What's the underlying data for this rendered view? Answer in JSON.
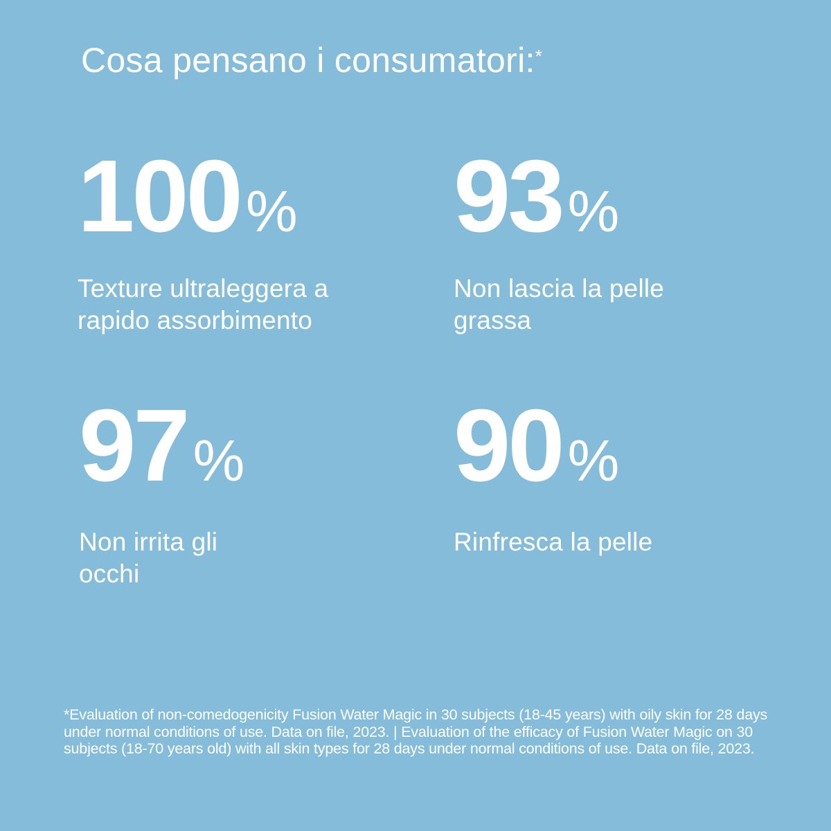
{
  "title": "Cosa pensano i consumatori:",
  "title_marker": "*",
  "background_color": "#85bcd9",
  "text_color": "#ffffff",
  "stats": [
    {
      "value": "100",
      "unit": "%",
      "label": "Texture ultraleggera a rapido assorbimento"
    },
    {
      "value": "93",
      "unit": "%",
      "label": "Non lascia la pelle grassa"
    },
    {
      "value": "97",
      "unit": "%",
      "label": "Non irrita gli occhi"
    },
    {
      "value": "90",
      "unit": "%",
      "label": "Rinfresca la pelle"
    }
  ],
  "footnote": "*Evaluation of non-comedogenicity Fusion Water Magic in 30 subjects (18-45 years) with oily skin for 28 days under normal conditions of use. Data on file, 2023. | Evaluation of the efficacy of Fusion Water Magic on 30 subjects (18-70 years old) with all skin types for 28 days under normal conditions of use. Data on file, 2023."
}
